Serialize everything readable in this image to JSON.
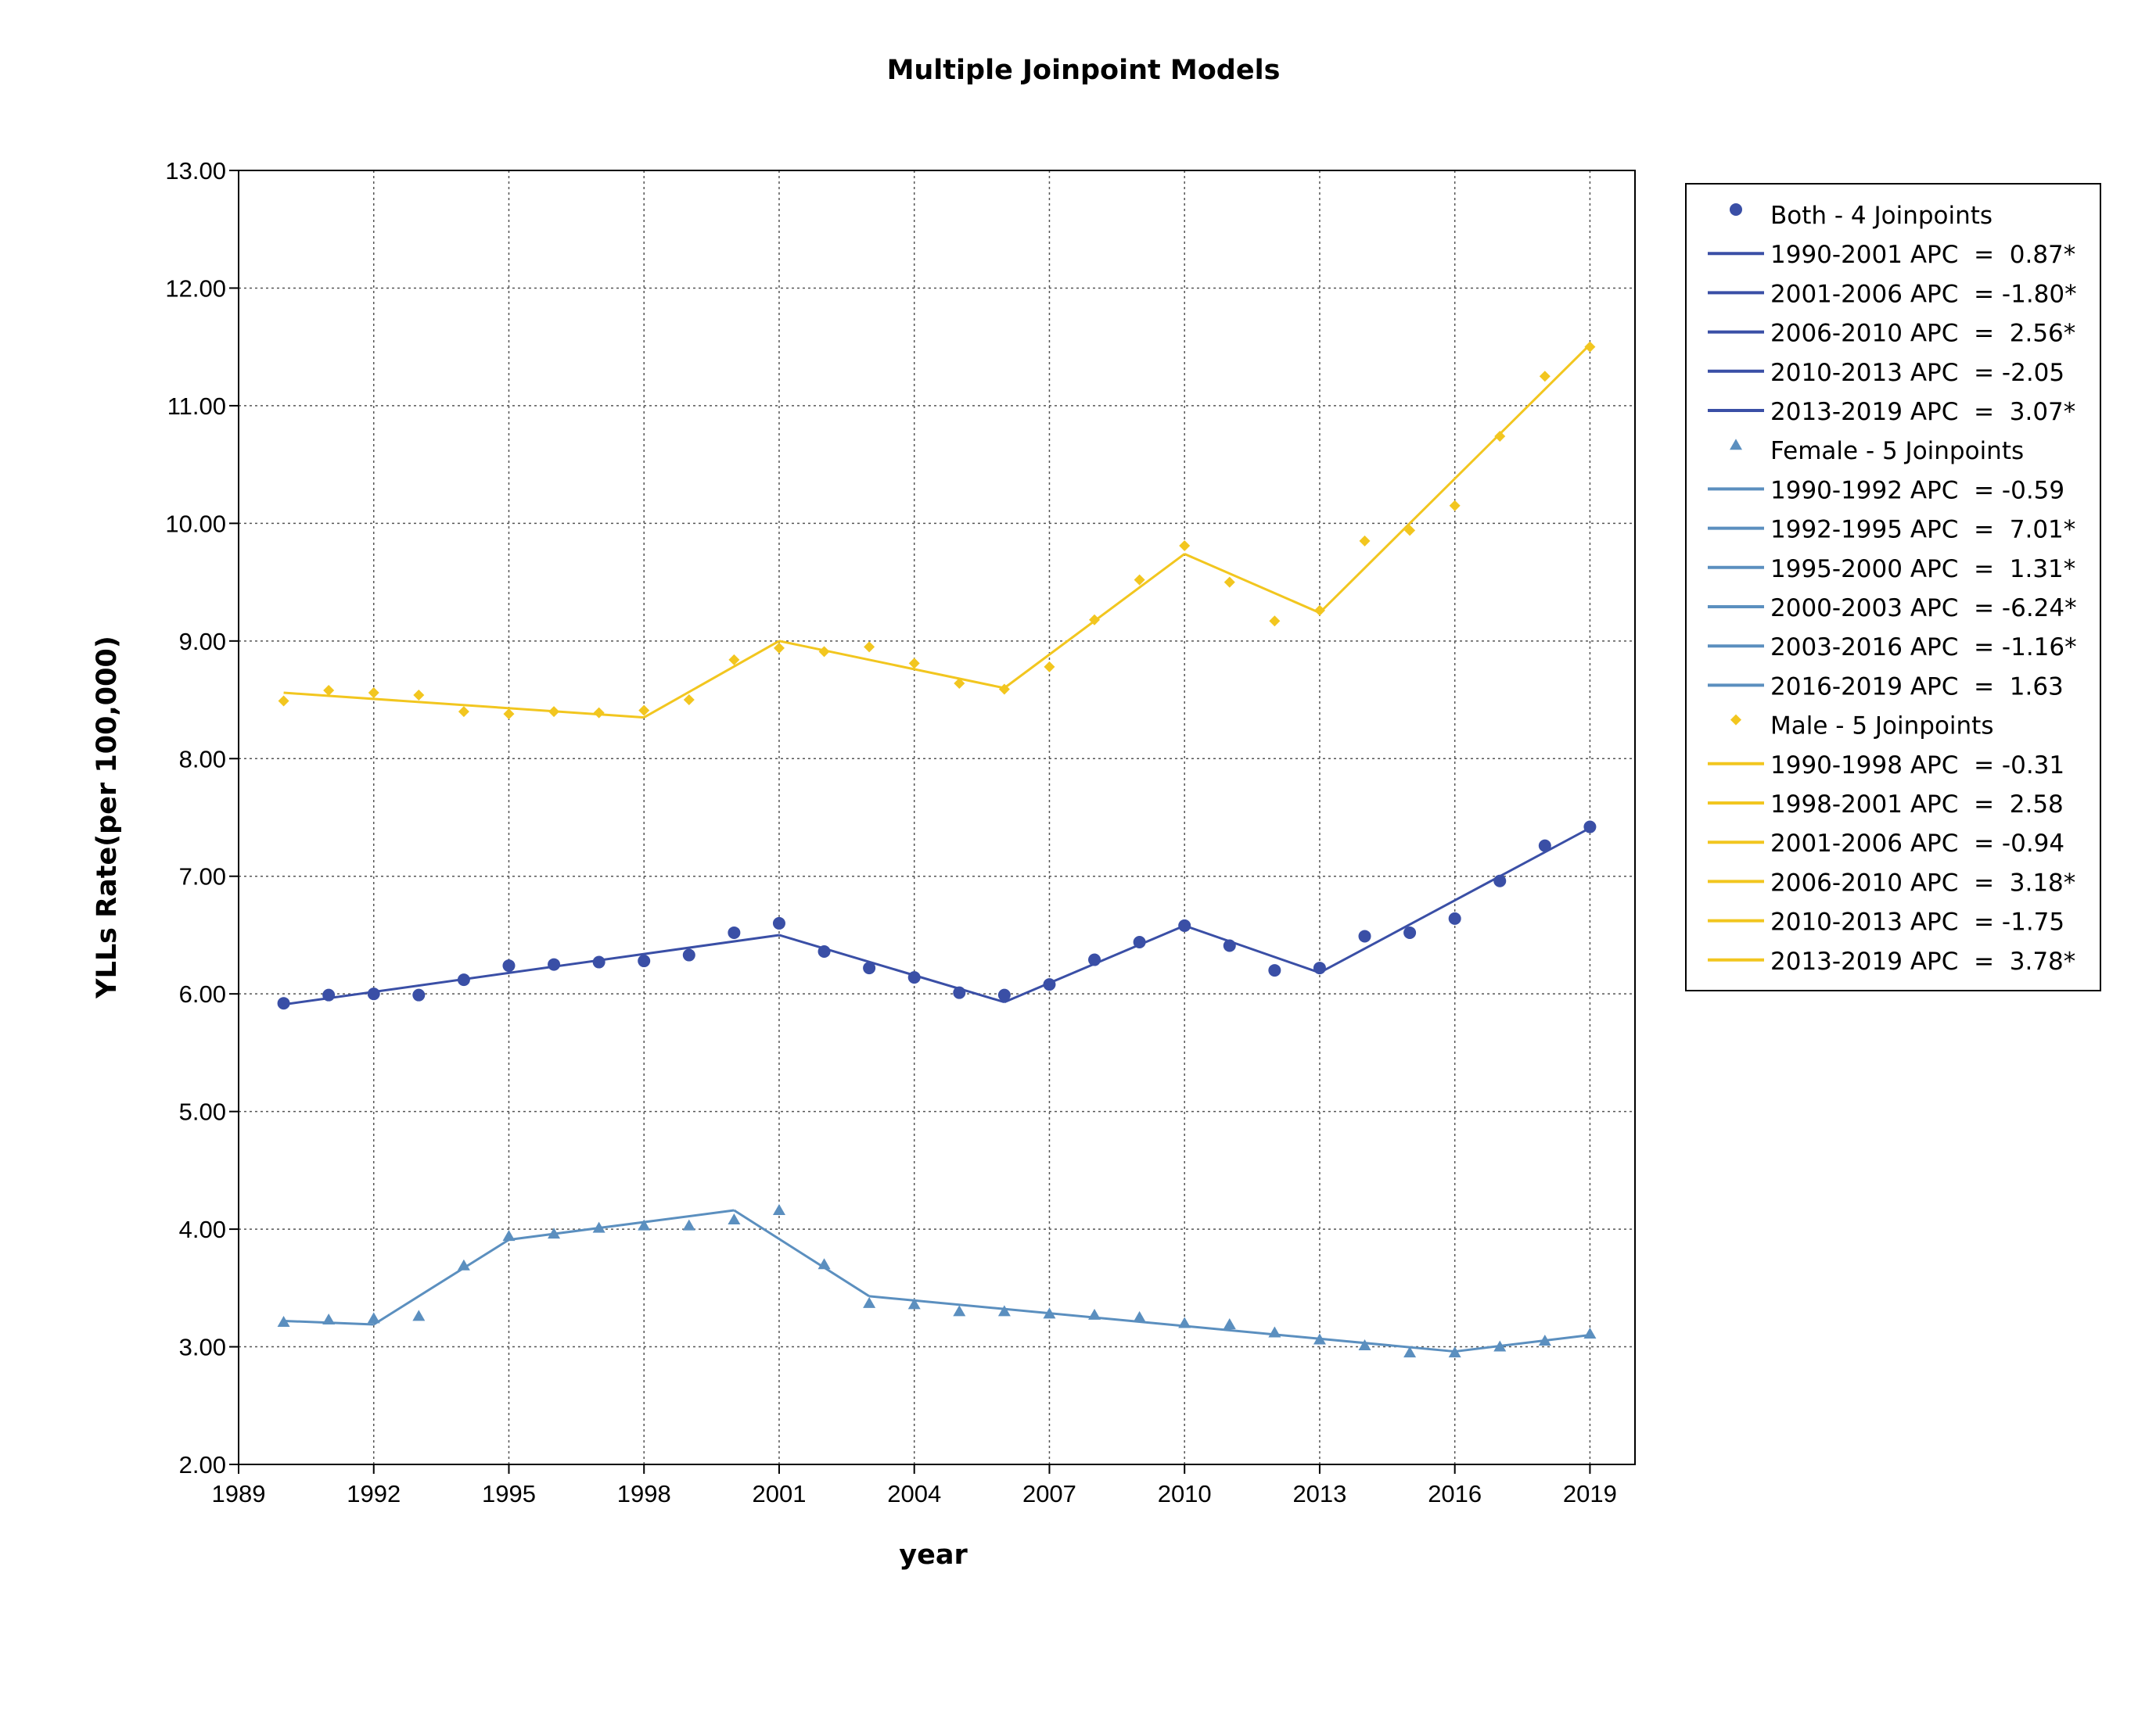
{
  "chart_data": {
    "type": "line",
    "title": "Multiple Joinpoint Models",
    "xlabel": "year",
    "ylabel": "YLLs Rate(per 100,000)",
    "xlim": [
      1989,
      2020
    ],
    "ylim": [
      2.0,
      13.0
    ],
    "x_ticks": [
      1989,
      1992,
      1995,
      1998,
      2001,
      2004,
      2007,
      2010,
      2013,
      2016,
      2019
    ],
    "y_ticks": [
      2.0,
      3.0,
      4.0,
      5.0,
      6.0,
      7.0,
      8.0,
      9.0,
      10.0,
      11.0,
      12.0,
      13.0
    ],
    "y_tick_labels": [
      "2.00",
      "3.00",
      "4.00",
      "5.00",
      "6.00",
      "7.00",
      "8.00",
      "9.00",
      "10.00",
      "11.00",
      "12.00",
      "13.00"
    ],
    "grid": true,
    "legend_position": "right",
    "colors": {
      "both": "#3a4fa6",
      "female": "#5b8fbf",
      "male": "#f2c61f"
    },
    "series": [
      {
        "name": "Both - 4 Joinpoints",
        "key": "both",
        "marker": "circle",
        "x": [
          1990,
          1991,
          1992,
          1993,
          1994,
          1995,
          1996,
          1997,
          1998,
          1999,
          2000,
          2001,
          2002,
          2003,
          2004,
          2005,
          2006,
          2007,
          2008,
          2009,
          2010,
          2011,
          2012,
          2013,
          2014,
          2015,
          2016,
          2017,
          2018,
          2019
        ],
        "y": [
          5.92,
          5.99,
          6.0,
          5.99,
          6.12,
          6.24,
          6.25,
          6.27,
          6.28,
          6.33,
          6.52,
          6.6,
          6.36,
          6.22,
          6.14,
          6.01,
          5.99,
          6.08,
          6.29,
          6.44,
          6.58,
          6.41,
          6.2,
          6.22,
          6.49,
          6.52,
          6.64,
          6.96,
          7.26,
          7.42
        ],
        "segments": [
          {
            "label": "1990-2001 APC  =  0.87*",
            "x0": 1990,
            "y0": 5.91,
            "x1": 2001,
            "y1": 6.5
          },
          {
            "label": "2001-2006 APC  = -1.80*",
            "x0": 2001,
            "y0": 6.5,
            "x1": 2006,
            "y1": 5.93
          },
          {
            "label": "2006-2010 APC  =  2.56*",
            "x0": 2006,
            "y0": 5.93,
            "x1": 2010,
            "y1": 6.58
          },
          {
            "label": "2010-2013 APC  = -2.05",
            "x0": 2010,
            "y0": 6.58,
            "x1": 2013,
            "y1": 6.18
          },
          {
            "label": "2013-2019 APC  =  3.07*",
            "x0": 2013,
            "y0": 6.18,
            "x1": 2019,
            "y1": 7.41
          }
        ]
      },
      {
        "name": "Female - 5 Joinpoints",
        "key": "female",
        "marker": "triangle",
        "x": [
          1990,
          1991,
          1992,
          1993,
          1994,
          1995,
          1996,
          1997,
          1998,
          1999,
          2000,
          2001,
          2002,
          2003,
          2004,
          2005,
          2006,
          2007,
          2008,
          2009,
          2010,
          2011,
          2012,
          2013,
          2014,
          2015,
          2016,
          2017,
          2018,
          2019
        ],
        "y": [
          3.21,
          3.23,
          3.24,
          3.26,
          3.69,
          3.94,
          3.96,
          4.01,
          4.03,
          4.03,
          4.08,
          4.16,
          3.7,
          3.37,
          3.36,
          3.3,
          3.3,
          3.28,
          3.27,
          3.25,
          3.2,
          3.19,
          3.12,
          3.06,
          3.01,
          2.95,
          2.95,
          3.0,
          3.05,
          3.11
        ],
        "segments": [
          {
            "label": "1990-1992 APC  = -0.59",
            "x0": 1990,
            "y0": 3.22,
            "x1": 1992,
            "y1": 3.19
          },
          {
            "label": "1992-1995 APC  =  7.01*",
            "x0": 1992,
            "y0": 3.19,
            "x1": 1995,
            "y1": 3.91
          },
          {
            "label": "1995-2000 APC  =  1.31*",
            "x0": 1995,
            "y0": 3.91,
            "x1": 2000,
            "y1": 4.16
          },
          {
            "label": "2000-2003 APC  = -6.24*",
            "x0": 2000,
            "y0": 4.16,
            "x1": 2003,
            "y1": 3.43
          },
          {
            "label": "2003-2016 APC  = -1.16*",
            "x0": 2003,
            "y0": 3.43,
            "x1": 2016,
            "y1": 2.96
          },
          {
            "label": "2016-2019 APC  =  1.63",
            "x0": 2016,
            "y0": 2.96,
            "x1": 2019,
            "y1": 3.1
          }
        ]
      },
      {
        "name": "Male - 5 Joinpoints",
        "key": "male",
        "marker": "diamond",
        "x": [
          1990,
          1991,
          1992,
          1993,
          1994,
          1995,
          1996,
          1997,
          1998,
          1999,
          2000,
          2001,
          2002,
          2003,
          2004,
          2005,
          2006,
          2007,
          2008,
          2009,
          2010,
          2011,
          2012,
          2013,
          2014,
          2015,
          2016,
          2017,
          2018,
          2019
        ],
        "y": [
          8.49,
          8.58,
          8.56,
          8.54,
          8.4,
          8.38,
          8.4,
          8.39,
          8.41,
          8.5,
          8.84,
          8.94,
          8.91,
          8.95,
          8.81,
          8.64,
          8.59,
          8.78,
          9.18,
          9.52,
          9.81,
          9.5,
          9.17,
          9.26,
          9.85,
          9.94,
          10.15,
          10.74,
          11.25,
          11.5
        ],
        "segments": [
          {
            "label": "1990-1998 APC  = -0.31",
            "x0": 1990,
            "y0": 8.56,
            "x1": 1998,
            "y1": 8.35
          },
          {
            "label": "1998-2001 APC  =  2.58",
            "x0": 1998,
            "y0": 8.35,
            "x1": 2001,
            "y1": 9.0
          },
          {
            "label": "2001-2006 APC  = -0.94",
            "x0": 2001,
            "y0": 9.0,
            "x1": 2006,
            "y1": 8.6
          },
          {
            "label": "2006-2010 APC  =  3.18*",
            "x0": 2006,
            "y0": 8.6,
            "x1": 2010,
            "y1": 9.74
          },
          {
            "label": "2010-2013 APC  = -1.75",
            "x0": 2010,
            "y0": 9.74,
            "x1": 2013,
            "y1": 9.24
          },
          {
            "label": "2013-2019 APC  =  3.78*",
            "x0": 2013,
            "y0": 9.24,
            "x1": 2019,
            "y1": 11.52
          }
        ]
      }
    ]
  }
}
